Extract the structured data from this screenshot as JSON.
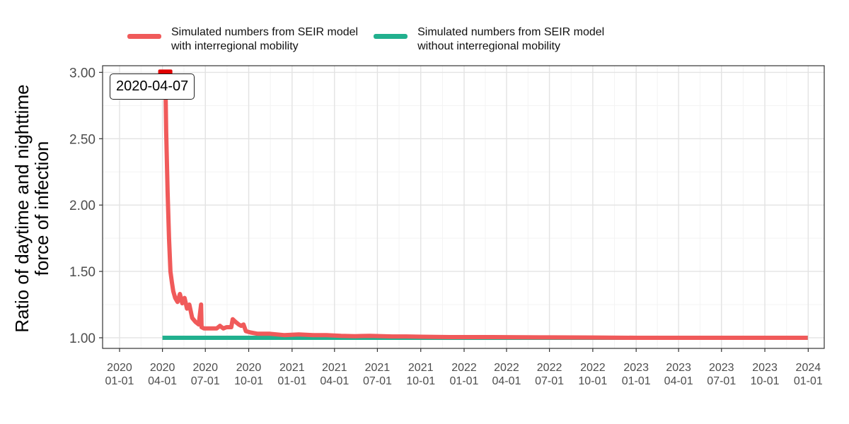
{
  "chart_data": {
    "type": "line",
    "title": "",
    "xlabel": "",
    "ylabel": "Ratio of daytime and nighttime\nforce of infection",
    "ylim": [
      0.92,
      3.05
    ],
    "xlim": [
      "2019-11-26",
      "2024-02-04"
    ],
    "yticks": [
      1.0,
      1.5,
      2.0,
      2.5,
      3.0
    ],
    "ytick_labels": [
      "1.00",
      "1.50",
      "2.00",
      "2.50",
      "3.00"
    ],
    "xticks": [
      "2020-01-01",
      "2020-04-01",
      "2020-07-01",
      "2020-10-01",
      "2021-01-01",
      "2021-04-01",
      "2021-07-01",
      "2021-10-01",
      "2022-01-01",
      "2022-04-01",
      "2022-07-01",
      "2022-10-01",
      "2023-01-01",
      "2023-04-01",
      "2023-07-01",
      "2023-10-01",
      "2024-01-01"
    ],
    "xtick_labels": [
      "2020\n01-01",
      "2020\n04-01",
      "2020\n07-01",
      "2020\n10-01",
      "2021\n01-01",
      "2021\n04-01",
      "2021\n07-01",
      "2021\n10-01",
      "2022\n01-01",
      "2022\n04-01",
      "2022\n07-01",
      "2022\n10-01",
      "2023\n01-01",
      "2023\n04-01",
      "2023\n07-01",
      "2023\n10-01",
      "2024\n01-01"
    ],
    "grid": true,
    "legend_position": "top",
    "series": [
      {
        "name": "Simulated numbers from SEIR model\nwith interregional mobility",
        "color": "#F05A5A",
        "x": [
          "2020-04-01",
          "2020-04-07",
          "2020-04-09",
          "2020-04-12",
          "2020-04-15",
          "2020-04-18",
          "2020-04-21",
          "2020-04-24",
          "2020-04-28",
          "2020-05-03",
          "2020-05-08",
          "2020-05-13",
          "2020-05-18",
          "2020-05-23",
          "2020-05-28",
          "2020-06-03",
          "2020-06-10",
          "2020-06-17",
          "2020-06-22",
          "2020-06-23",
          "2020-06-28",
          "2020-07-05",
          "2020-07-15",
          "2020-07-25",
          "2020-08-01",
          "2020-08-08",
          "2020-08-15",
          "2020-08-25",
          "2020-08-28",
          "2020-09-03",
          "2020-09-10",
          "2020-09-15",
          "2020-09-20",
          "2020-09-25",
          "2020-10-05",
          "2020-10-20",
          "2020-11-15",
          "2020-12-15",
          "2021-01-15",
          "2021-02-15",
          "2021-03-15",
          "2021-04-15",
          "2021-05-15",
          "2021-06-15",
          "2021-08-01",
          "2021-09-01",
          "2021-10-01",
          "2021-12-01",
          "2022-03-01",
          "2022-07-01",
          "2022-10-01",
          "2023-01-01",
          "2023-06-01",
          "2023-12-31"
        ],
        "values": [
          3.0,
          3.0,
          2.55,
          2.1,
          1.75,
          1.5,
          1.42,
          1.35,
          1.3,
          1.27,
          1.33,
          1.26,
          1.3,
          1.22,
          1.25,
          1.15,
          1.12,
          1.1,
          1.25,
          1.08,
          1.07,
          1.07,
          1.07,
          1.07,
          1.09,
          1.07,
          1.08,
          1.08,
          1.14,
          1.12,
          1.1,
          1.09,
          1.1,
          1.05,
          1.04,
          1.03,
          1.03,
          1.02,
          1.025,
          1.02,
          1.02,
          1.015,
          1.012,
          1.015,
          1.01,
          1.01,
          1.008,
          1.005,
          1.005,
          1.003,
          1.002,
          1.0,
          1.0,
          1.0
        ]
      },
      {
        "name": "Simulated numbers from SEIR model\nwithout interregional mobility",
        "color": "#21B08E",
        "x": [
          "2020-04-01",
          "2023-12-31"
        ],
        "values": [
          1.0,
          1.0
        ]
      }
    ],
    "annotations": [
      {
        "text": "2020-04-07",
        "x": "2020-04-07",
        "y": 3.0
      }
    ]
  }
}
